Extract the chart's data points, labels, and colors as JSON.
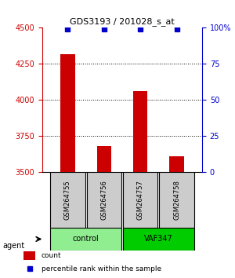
{
  "title": "GDS3193 / 201028_s_at",
  "samples": [
    "GSM264755",
    "GSM264756",
    "GSM264757",
    "GSM264758"
  ],
  "counts": [
    4320,
    3680,
    4060,
    3610
  ],
  "percentile_ranks": [
    99,
    99,
    99,
    99
  ],
  "ylim_left": [
    3500,
    4500
  ],
  "ylim_right": [
    0,
    100
  ],
  "yticks_left": [
    3500,
    3750,
    4000,
    4250,
    4500
  ],
  "yticks_right": [
    0,
    25,
    50,
    75,
    100
  ],
  "ytick_labels_right": [
    "0",
    "25",
    "50",
    "75",
    "100%"
  ],
  "bar_color": "#cc0000",
  "dot_color": "#0000cc",
  "groups": [
    {
      "label": "control",
      "samples": [
        0,
        1
      ],
      "color": "#90ee90"
    },
    {
      "label": "VAF347",
      "samples": [
        2,
        3
      ],
      "color": "#00cc00"
    }
  ],
  "legend_count_color": "#cc0000",
  "legend_pct_color": "#0000cc",
  "agent_label": "agent",
  "x_positions": [
    0,
    1,
    2,
    3
  ],
  "bar_width": 0.4,
  "background_color": "#ffffff",
  "grid_color": "#000000",
  "sample_box_color": "#cccccc"
}
